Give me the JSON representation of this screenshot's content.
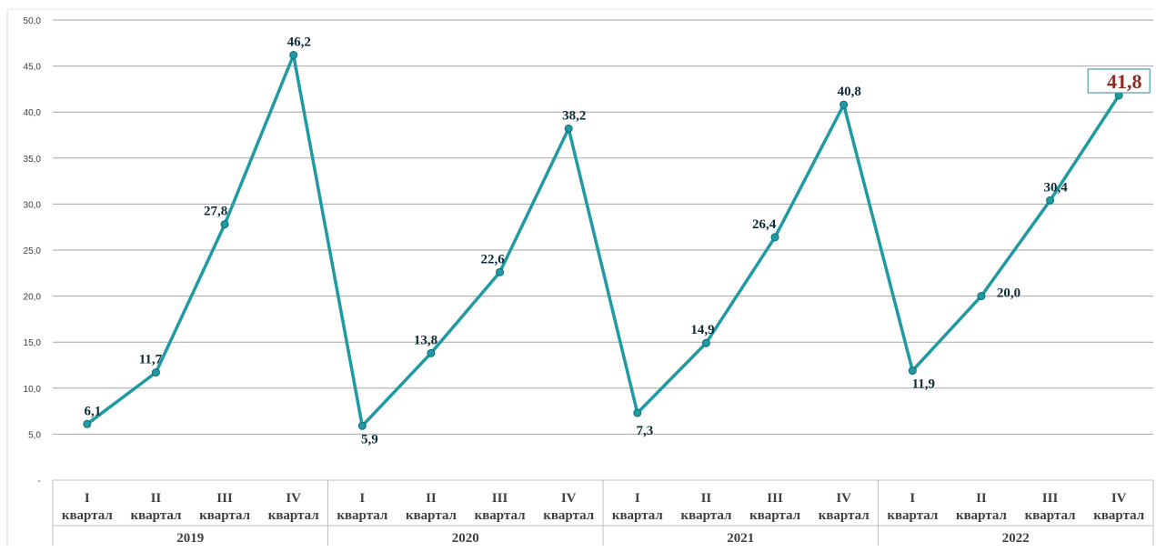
{
  "colors": {
    "series": "#1f9aa2",
    "highlight_text": "#8b2b22",
    "highlight_box": "#2e8a94",
    "grid": "#a6a6a6",
    "label": "#0d2b36"
  },
  "chart_data": {
    "type": "line",
    "title": "",
    "xlabel": "",
    "ylabel": "",
    "ylim": [
      0,
      50
    ],
    "yticks": [
      "-",
      "5,0",
      "10,0",
      "15,0",
      "20,0",
      "25,0",
      "30,0",
      "35,0",
      "40,0",
      "45,0",
      "50,0"
    ],
    "grid": true,
    "legend": "none",
    "quarter_roman": [
      "I",
      "II",
      "III",
      "IV"
    ],
    "quarter_word": "квартал",
    "years": [
      "2019",
      "2020",
      "2021",
      "2022"
    ],
    "series": [
      {
        "values": [
          6.1,
          11.7,
          27.8,
          46.2,
          5.9,
          13.8,
          22.6,
          38.2,
          7.3,
          14.9,
          26.4,
          40.8,
          11.9,
          20.0,
          30.4,
          41.8
        ],
        "labels": [
          "6,1",
          "11,7",
          "27,8",
          "46,2",
          "5,9",
          "13,8",
          "22,6",
          "38,2",
          "7,3",
          "14,9",
          "26,4",
          "40,8",
          "11,9",
          "20,0",
          "30,4",
          "41,8"
        ]
      }
    ]
  }
}
